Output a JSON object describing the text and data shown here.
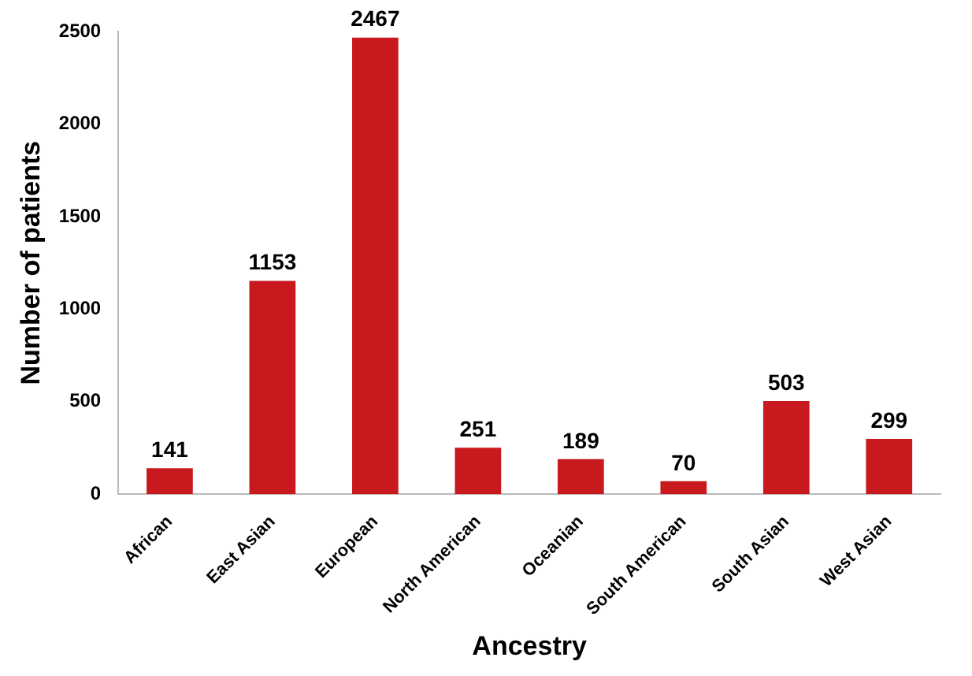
{
  "chart_data": {
    "type": "bar",
    "xlabel": "Ancestry",
    "ylabel": "Number of patients",
    "categories": [
      "African",
      "East Asian",
      "European",
      "North American",
      "Oceanian",
      "South American",
      "South Asian",
      "West Asian"
    ],
    "values": [
      141,
      1153,
      2467,
      251,
      189,
      70,
      503,
      299
    ],
    "color": "#c8191e",
    "ylim": [
      0,
      2500
    ],
    "yticks": [
      0,
      500,
      1000,
      1500,
      2000,
      2500
    ],
    "grid": false,
    "legend": false,
    "data_labels": true
  }
}
